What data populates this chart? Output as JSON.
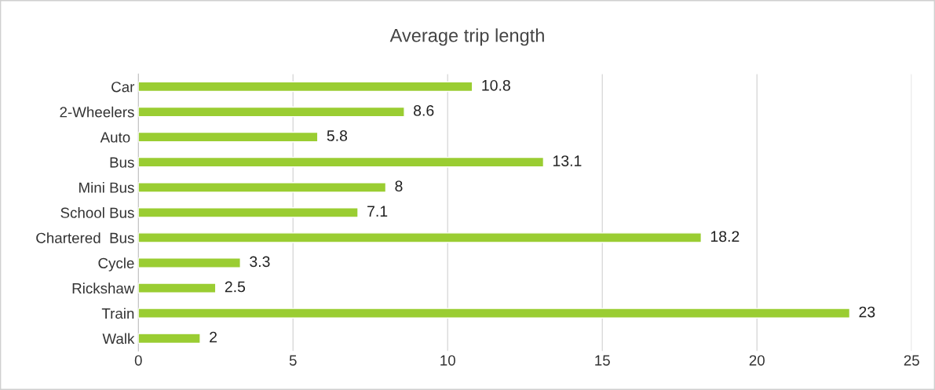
{
  "chart_data": {
    "type": "bar",
    "orientation": "horizontal",
    "title": "Average trip length",
    "categories": [
      "Car",
      "2-Wheelers",
      "Auto ",
      "Bus",
      "Mini Bus",
      "School Bus",
      "Chartered  Bus",
      "Cycle",
      "Rickshaw",
      "Train",
      "Walk"
    ],
    "values": [
      10.8,
      8.6,
      5.8,
      13.1,
      8,
      7.1,
      18.2,
      3.3,
      2.5,
      23,
      2
    ],
    "color": "#9acd32",
    "xlim": [
      0,
      25
    ],
    "xticks": [
      0,
      5,
      10,
      15,
      20,
      25
    ],
    "grid": "x",
    "data_labels": true,
    "legend": false
  }
}
